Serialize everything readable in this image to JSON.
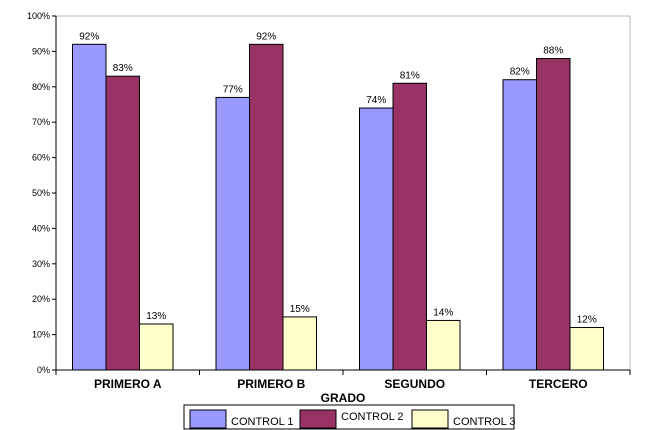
{
  "chart_data": {
    "type": "bar",
    "categories": [
      "PRIMERO A",
      "PRIMERO B",
      "SEGUNDO",
      "TERCERO"
    ],
    "series": [
      {
        "name": "CONTROL 1",
        "color": "#9999ff",
        "values": [
          92,
          77,
          74,
          82
        ],
        "labels": [
          "92%",
          "77%",
          "74%",
          "82%"
        ]
      },
      {
        "name": "CONTROL 2",
        "color": "#993366",
        "values": [
          83,
          92,
          81,
          88
        ],
        "labels": [
          "83%",
          "92%",
          "81%",
          "88%"
        ]
      },
      {
        "name": "CONTROL 3",
        "color": "#ffffcc",
        "values": [
          13,
          15,
          14,
          12
        ],
        "labels": [
          "13%",
          "15%",
          "14%",
          "12%"
        ]
      }
    ],
    "xlabel": "GRADO",
    "ylabel": "",
    "ylim": [
      0,
      100
    ],
    "yticks": [
      0,
      10,
      20,
      30,
      40,
      50,
      60,
      70,
      80,
      90,
      100
    ],
    "ytick_labels": [
      "0%",
      "10%",
      "20%",
      "30%",
      "40%",
      "50%",
      "60%",
      "70%",
      "80%",
      "90%",
      "100%"
    ],
    "grid": false,
    "legend_position": "bottom"
  }
}
